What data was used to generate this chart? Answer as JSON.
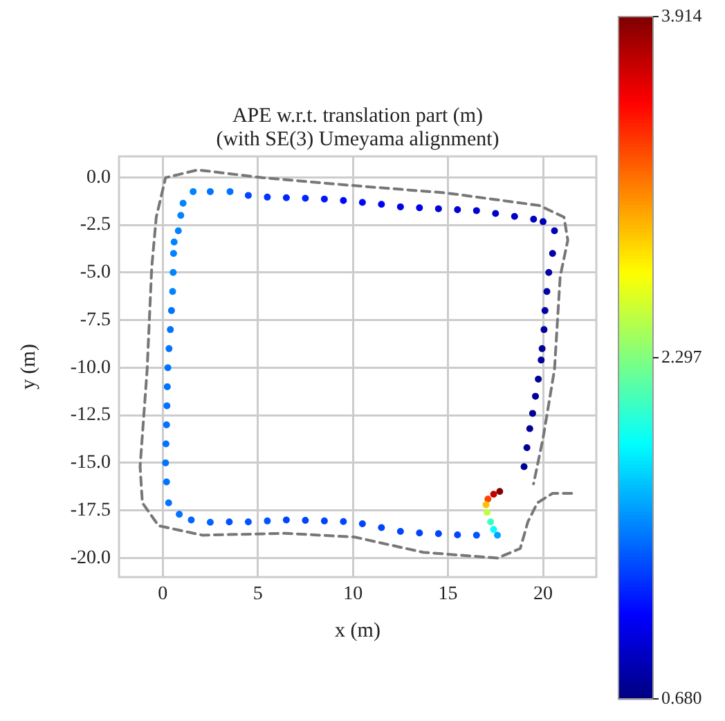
{
  "chart_data": {
    "type": "line",
    "title": "APE w.r.t. translation part (m)\n(with SE(3) Umeyama alignment)",
    "xlabel": "x (m)",
    "ylabel": "y (m)",
    "xlim": [
      -2.3,
      22.8
    ],
    "ylim": [
      -21.0,
      1.1
    ],
    "xticks": [
      0,
      5,
      10,
      15,
      20
    ],
    "yticks": [
      {
        "value": 0,
        "label": "0.0"
      },
      -2.5,
      {
        "value": -5,
        "label": "-5.0"
      },
      -7.5,
      {
        "value": -10,
        "label": "-10.0"
      },
      -12.5,
      {
        "value": -15,
        "label": "-15.0"
      },
      -17.5,
      {
        "value": -20,
        "label": "-20.0"
      }
    ],
    "grid": true,
    "legend": false,
    "marker": "none",
    "clim": [
      0.68,
      3.914
    ],
    "cticks": [
      {
        "value": 0.68,
        "label": "0.680"
      },
      {
        "value": 2.297,
        "label": "2.297"
      },
      {
        "value": 3.914,
        "label": "3.914"
      }
    ],
    "series": [
      {
        "color": "#777777",
        "line_style": "dashed",
        "x": [
          21.5,
          20.5,
          19.7,
          19.2,
          18.8,
          17.6,
          13.7,
          10.1,
          6.45,
          2.09,
          -0.22,
          -1.07,
          -1.19,
          -0.82,
          -0.58,
          -0.34,
          0.15,
          1.84,
          5.24,
          10.1,
          14.9,
          19.8,
          21.1,
          21.3,
          20.9,
          20.6,
          20.0,
          19.5
        ],
        "values": [
          -16.6,
          -16.6,
          -17.1,
          -18.1,
          -19.5,
          -20.0,
          -19.7,
          -18.9,
          -18.7,
          -18.8,
          -18.3,
          -17.1,
          -15.2,
          -10.1,
          -4.75,
          -2.09,
          -0.02,
          0.39,
          -0.02,
          -0.44,
          -0.82,
          -1.48,
          -2.09,
          -3.3,
          -5.2,
          -10.1,
          -13.7,
          -16.1
        ]
      },
      {
        "type": "scatter",
        "marker": "circle",
        "colors": [
          "#840000",
          "#c30000",
          "#ff4200",
          "#ffc000",
          "#c0ff3f",
          "#41ffbe",
          "#02fffd",
          "#00a3ff",
          "#0054ff",
          "#0044ff",
          "#0044ff",
          "#0044ff",
          "#0044ff",
          "#0044ff",
          "#0044ff",
          "#0044ff",
          "#0044ff",
          "#0044ff",
          "#0044ff",
          "#0054ff",
          "#0054ff",
          "#0054ff",
          "#0064ff",
          "#0064ff",
          "#0073ff",
          "#0073ff",
          "#0073ff",
          "#0073ff",
          "#0073ff",
          "#0073ff",
          "#0073ff",
          "#0073ff",
          "#0073ff",
          "#0073ff",
          "#0073ff",
          "#0073ff",
          "#0083ff",
          "#0083ff",
          "#0083ff",
          "#0083ff",
          "#0083ff",
          "#0083ff",
          "#0083ff",
          "#0083ff",
          "#0073ff",
          "#0073ff",
          "#0044ff",
          "#0034ff",
          "#0025ff",
          "#0025ff",
          "#0015ff",
          "#0005ff",
          "#0005ff",
          "#0000f4",
          "#0000e4",
          "#0000e4",
          "#0000d5",
          "#0000d5",
          "#0000d5",
          "#0000c5",
          "#0000c5",
          "#0000c5",
          "#0000b5",
          "#0000b5",
          "#0000a5",
          "#0000a5",
          "#0000a5",
          "#0000a5",
          "#000096",
          "#000096",
          "#000096",
          "#000096",
          "#000096",
          "#000096",
          "#000096",
          "#000096",
          "#000096"
        ],
        "x": [
          17.72,
          17.4,
          17.1,
          17.0,
          17.05,
          17.24,
          17.4,
          17.6,
          16.5,
          15.5,
          14.5,
          13.5,
          12.5,
          11.5,
          10.5,
          9.5,
          8.5,
          7.5,
          6.5,
          5.5,
          4.5,
          3.5,
          2.5,
          1.5,
          0.87,
          0.31,
          0.2,
          0.15,
          0.17,
          0.2,
          0.22,
          0.24,
          0.27,
          0.33,
          0.4,
          0.46,
          0.52,
          0.55,
          0.57,
          0.6,
          0.82,
          0.95,
          1.07,
          1.6,
          2.5,
          3.54,
          4.5,
          5.5,
          6.5,
          7.5,
          8.5,
          9.5,
          10.5,
          11.5,
          12.5,
          13.5,
          14.5,
          15.5,
          16.5,
          17.5,
          18.5,
          19.5,
          20.0,
          20.6,
          20.5,
          20.3,
          20.2,
          20.1,
          20.05,
          19.95,
          19.9,
          19.75,
          19.6,
          19.45,
          19.3,
          19.15,
          19.0
        ],
        "values": [
          -16.5,
          -16.65,
          -16.9,
          -17.2,
          -17.6,
          -18.1,
          -18.5,
          -18.8,
          -18.8,
          -18.78,
          -18.72,
          -18.68,
          -18.6,
          -18.4,
          -18.2,
          -18.08,
          -18.05,
          -18.02,
          -18.0,
          -18.05,
          -18.1,
          -18.1,
          -18.12,
          -18.0,
          -17.7,
          -17.1,
          -16.0,
          -15.0,
          -14.0,
          -13.0,
          -12.0,
          -11.0,
          -10.0,
          -9.0,
          -8.0,
          -7.0,
          -6.0,
          -5.0,
          -4.0,
          -3.4,
          -2.81,
          -2.0,
          -1.36,
          -0.75,
          -0.75,
          -0.75,
          -0.95,
          -1.04,
          -1.07,
          -1.1,
          -1.14,
          -1.22,
          -1.32,
          -1.42,
          -1.55,
          -1.6,
          -1.65,
          -1.7,
          -1.75,
          -1.9,
          -2.05,
          -2.2,
          -2.33,
          -2.81,
          -4.0,
          -5.0,
          -6.0,
          -7.0,
          -8.0,
          -9.0,
          -9.6,
          -10.6,
          -11.5,
          -12.4,
          -13.2,
          -14.2,
          -15.2
        ],
        "cvalues": [
          3.9,
          3.7,
          3.3,
          2.9,
          2.5,
          2.1,
          1.9,
          1.6,
          1.35,
          1.3,
          1.3,
          1.3,
          1.3,
          1.3,
          1.3,
          1.3,
          1.3,
          1.3,
          1.3,
          1.35,
          1.35,
          1.35,
          1.4,
          1.4,
          1.45,
          1.45,
          1.45,
          1.45,
          1.45,
          1.45,
          1.45,
          1.45,
          1.45,
          1.45,
          1.45,
          1.45,
          1.5,
          1.5,
          1.5,
          1.5,
          1.5,
          1.5,
          1.5,
          1.5,
          1.45,
          1.45,
          1.3,
          1.25,
          1.2,
          1.2,
          1.15,
          1.1,
          1.1,
          1.05,
          1.0,
          1.0,
          0.95,
          0.95,
          0.95,
          0.9,
          0.9,
          0.9,
          0.85,
          0.85,
          0.8,
          0.8,
          0.8,
          0.8,
          0.75,
          0.75,
          0.75,
          0.75,
          0.75,
          0.75,
          0.75,
          0.75,
          0.75
        ]
      }
    ]
  }
}
